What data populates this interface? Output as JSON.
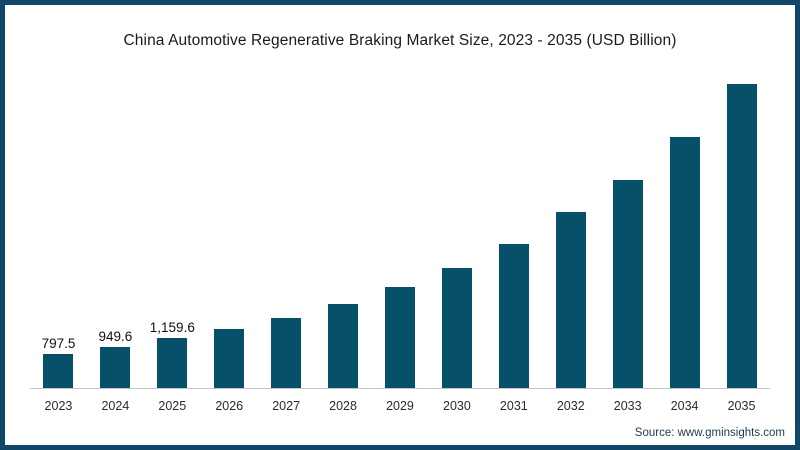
{
  "colors": {
    "frame_border": "#114766",
    "bar": "#07506a",
    "axis_line": "#c9c9c9",
    "title_text": "#1a1a1a",
    "source_text": "#1c3a52"
  },
  "chart_data": {
    "type": "bar",
    "title": "China Automotive Regenerative Braking Market Size, 2023 - 2035 (USD Billion)",
    "source": "Source: www.gminsights.com",
    "unit": "USD Billion",
    "categories": [
      "2023",
      "2024",
      "2025",
      "2026",
      "2027",
      "2028",
      "2029",
      "2030",
      "2031",
      "2032",
      "2033",
      "2034",
      "2035"
    ],
    "values": [
      797.5,
      949.6,
      1159.6,
      1370,
      1645,
      1970,
      2360,
      2790,
      3350,
      4100,
      4860,
      5850,
      7090
    ],
    "value_labels": [
      "797.5",
      "949.6",
      "1,159.6",
      null,
      null,
      null,
      null,
      null,
      null,
      null,
      null,
      null,
      null
    ],
    "ylim": [
      0,
      7400
    ],
    "grid": false,
    "legend": false,
    "y_axis_visible": false
  }
}
